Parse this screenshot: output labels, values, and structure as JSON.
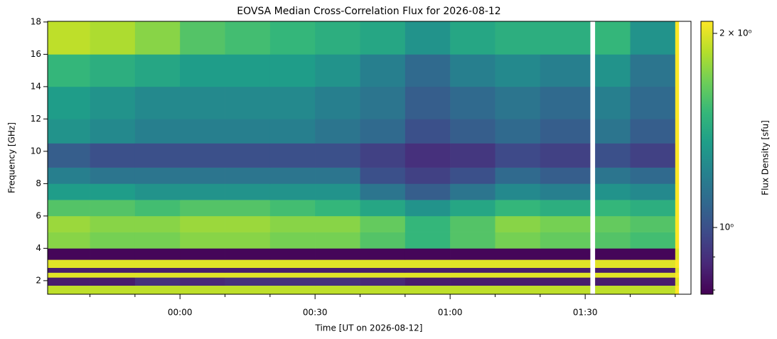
{
  "chart_data": {
    "type": "heatmap",
    "title": "EOVSA Median Cross-Correlation Flux for 2026-08-12",
    "xlabel": "Time [UT on 2026-08-12]",
    "ylabel": "Frequency [GHz]",
    "colorbar_label": "Flux Density [sfu]",
    "colormap": "viridis",
    "log_color_scale": true,
    "xlim": [
      -29.4,
      113.5
    ],
    "xticks": [
      {
        "value": 0,
        "label": "00:00"
      },
      {
        "value": 30,
        "label": "00:30"
      },
      {
        "value": 60,
        "label": "01:00"
      },
      {
        "value": 90,
        "label": "01:30"
      }
    ],
    "xminorticks": [
      -20,
      -10,
      10,
      20,
      40,
      50,
      70,
      80,
      100,
      110
    ],
    "ylim": [
      1.16,
      18.04
    ],
    "yticks": [
      2,
      4,
      6,
      8,
      10,
      12,
      14,
      16,
      18
    ],
    "clim": [
      0.788,
      2.088
    ],
    "cticks": [
      {
        "value": 1,
        "label": "10⁰"
      },
      {
        "value": 2,
        "label": "2 × 10⁰"
      }
    ],
    "cminorticks": [
      0.8,
      0.9
    ],
    "x_bins": [
      -29.4,
      -20,
      -10,
      0,
      10,
      20,
      30,
      40,
      50,
      60,
      70,
      80,
      91.1,
      92.2,
      100,
      110,
      110.8
    ],
    "y_bins": [
      1.16,
      1.7,
      2.2,
      2.5,
      2.8,
      3.3,
      4.0,
      5,
      6,
      7,
      8,
      9,
      10.5,
      12,
      14,
      16,
      18.04
    ],
    "z": [
      [
        1.9,
        1.9,
        1.9,
        1.9,
        1.9,
        1.9,
        1.9,
        1.9,
        1.9,
        1.9,
        1.9,
        1.9,
        null,
        1.9,
        1.9,
        2.1
      ],
      [
        0.85,
        0.85,
        0.9,
        0.88,
        0.9,
        0.9,
        0.9,
        0.88,
        0.85,
        0.85,
        0.85,
        0.85,
        null,
        0.85,
        0.85,
        2.0
      ],
      [
        2.0,
        2.0,
        2.0,
        2.0,
        2.0,
        2.0,
        2.0,
        2.0,
        2.0,
        2.0,
        2.0,
        2.0,
        null,
        2.0,
        2.0,
        2.1
      ],
      [
        0.85,
        0.85,
        0.85,
        0.85,
        0.85,
        0.85,
        0.85,
        0.85,
        0.85,
        0.85,
        0.85,
        0.85,
        null,
        0.85,
        0.85,
        2.0
      ],
      [
        2.0,
        2.0,
        2.0,
        2.0,
        2.0,
        2.0,
        2.0,
        2.0,
        2.0,
        2.0,
        2.0,
        2.0,
        null,
        2.0,
        2.0,
        2.1
      ],
      [
        0.8,
        0.8,
        0.8,
        0.8,
        0.8,
        0.8,
        0.8,
        0.8,
        0.8,
        0.8,
        0.8,
        0.8,
        null,
        0.8,
        0.8,
        2.0
      ],
      [
        1.75,
        1.7,
        1.7,
        1.75,
        1.75,
        1.7,
        1.7,
        1.6,
        1.5,
        1.6,
        1.7,
        1.65,
        null,
        1.6,
        1.55,
        2.1
      ],
      [
        1.8,
        1.75,
        1.75,
        1.8,
        1.8,
        1.75,
        1.75,
        1.65,
        1.5,
        1.6,
        1.75,
        1.7,
        null,
        1.65,
        1.6,
        2.1
      ],
      [
        1.6,
        1.6,
        1.55,
        1.6,
        1.6,
        1.55,
        1.5,
        1.4,
        1.3,
        1.4,
        1.5,
        1.45,
        null,
        1.5,
        1.45,
        2.1
      ],
      [
        1.35,
        1.35,
        1.3,
        1.3,
        1.3,
        1.3,
        1.3,
        1.15,
        1.05,
        1.15,
        1.25,
        1.2,
        null,
        1.3,
        1.25,
        2.1
      ],
      [
        1.2,
        1.15,
        1.15,
        1.15,
        1.15,
        1.15,
        1.15,
        1.0,
        0.95,
        1.0,
        1.1,
        1.05,
        null,
        1.15,
        1.1,
        2.1
      ],
      [
        1.05,
        1.0,
        1.0,
        1.0,
        1.0,
        1.0,
        1.0,
        0.95,
        0.9,
        0.92,
        0.98,
        0.95,
        null,
        1.0,
        0.95,
        2.1
      ],
      [
        1.3,
        1.25,
        1.2,
        1.2,
        1.2,
        1.2,
        1.15,
        1.1,
        1.0,
        1.05,
        1.1,
        1.05,
        null,
        1.15,
        1.05,
        2.1
      ],
      [
        1.35,
        1.3,
        1.25,
        1.25,
        1.25,
        1.25,
        1.2,
        1.15,
        1.05,
        1.1,
        1.15,
        1.1,
        null,
        1.2,
        1.1,
        2.1
      ],
      [
        1.5,
        1.45,
        1.4,
        1.35,
        1.35,
        1.35,
        1.3,
        1.2,
        1.1,
        1.2,
        1.25,
        1.2,
        null,
        1.3,
        1.15,
        2.1
      ],
      [
        1.9,
        1.85,
        1.75,
        1.6,
        1.55,
        1.5,
        1.45,
        1.4,
        1.3,
        1.4,
        1.45,
        1.45,
        null,
        1.5,
        1.3,
        2.1
      ]
    ]
  }
}
